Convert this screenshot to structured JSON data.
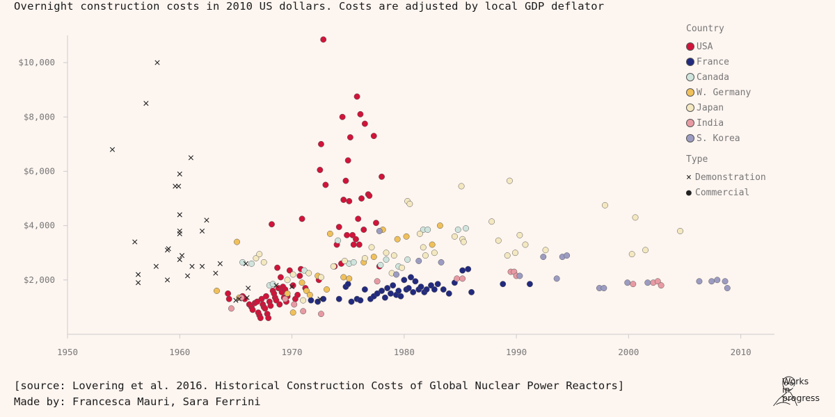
{
  "title": "Overnight construction costs in 2010 US dollars. Costs are adjusted by local GDP deflator",
  "footer": {
    "source": "[source: Lovering et al. 2016. Historical Construction Costs of Global Nuclear Power Reactors]",
    "credits": "Made by: Francesca Mauri, Sara Ferrini",
    "brand_lines": [
      "Works",
      "in",
      "progress"
    ]
  },
  "legend": {
    "country_title": "Country",
    "countries": [
      {
        "name": "USA",
        "color": "#d0143a"
      },
      {
        "name": "France",
        "color": "#222a7e"
      },
      {
        "name": "Canada",
        "color": "#cfe4dc"
      },
      {
        "name": "W. Germany",
        "color": "#f0c05a"
      },
      {
        "name": "Japan",
        "color": "#f4e8c0"
      },
      {
        "name": "India",
        "color": "#e89aa3"
      },
      {
        "name": "S. Korea",
        "color": "#9c9cc2"
      }
    ],
    "type_title": "Type",
    "types": [
      {
        "name": "Demonstration",
        "symbol": "×"
      },
      {
        "name": "Commercial",
        "symbol": "●"
      }
    ]
  },
  "chart_data": {
    "type": "scatter",
    "title": "Overnight construction costs in 2010 US dollars. Costs are adjusted by local GDP deflator",
    "xlabel": "",
    "ylabel": "",
    "xlim": [
      1950,
      2013
    ],
    "ylim": [
      0,
      11000
    ],
    "x_ticks": [
      1950,
      1960,
      1970,
      1980,
      1990,
      2000,
      2010
    ],
    "y_ticks": [
      2000,
      4000,
      6000,
      8000,
      10000
    ],
    "y_tick_labels": [
      "$2,000",
      "$4,000",
      "$6,000",
      "$8,000",
      "$10,000"
    ],
    "grid": false,
    "legend_position": "right",
    "series": [
      {
        "name": "Demonstration",
        "country": "USA",
        "marker": "x",
        "points": [
          [
            1954,
            6800
          ],
          [
            1956,
            3400
          ],
          [
            1956.3,
            2200
          ],
          [
            1956.3,
            1900
          ],
          [
            1957,
            8500
          ],
          [
            1957.9,
            2500
          ],
          [
            1958,
            10000
          ],
          [
            1958.9,
            3100
          ],
          [
            1959,
            3150
          ],
          [
            1958.9,
            2000
          ],
          [
            1959.6,
            5450
          ],
          [
            1959.9,
            5450
          ],
          [
            1960,
            5900
          ],
          [
            1960,
            4400
          ],
          [
            1960,
            3800
          ],
          [
            1960,
            3700
          ],
          [
            1960,
            2750
          ],
          [
            1960.2,
            2900
          ],
          [
            1960.7,
            2150
          ],
          [
            1961,
            6500
          ],
          [
            1961.1,
            2500
          ],
          [
            1962,
            2500
          ],
          [
            1962,
            3800
          ],
          [
            1962.4,
            4200
          ],
          [
            1963.2,
            2250
          ],
          [
            1963.6,
            2600
          ],
          [
            1965,
            1250
          ],
          [
            1965.3,
            1300
          ],
          [
            1965.9,
            2600
          ],
          [
            1966.1,
            1700
          ],
          [
            1966,
            1350
          ],
          [
            1968.6,
            1800
          ],
          [
            1970,
            1750
          ],
          [
            1972.5,
            1300
          ]
        ]
      },
      {
        "name": "USA",
        "marker": "o",
        "points": [
          [
            1964.3,
            1500
          ],
          [
            1964.4,
            1300
          ],
          [
            1965.6,
            1400
          ],
          [
            1965.8,
            1300
          ],
          [
            1966.2,
            1100
          ],
          [
            1966.4,
            1000
          ],
          [
            1966.5,
            900
          ],
          [
            1966.7,
            1150
          ],
          [
            1966.9,
            1200
          ],
          [
            1967,
            800
          ],
          [
            1967.1,
            700
          ],
          [
            1967.2,
            600
          ],
          [
            1967.3,
            1300
          ],
          [
            1967.4,
            1100
          ],
          [
            1967.5,
            1000
          ],
          [
            1967.6,
            950
          ],
          [
            1967.7,
            1400
          ],
          [
            1967.8,
            750
          ],
          [
            1967.9,
            600
          ],
          [
            1968,
            1200
          ],
          [
            1968.1,
            1050
          ],
          [
            1968.2,
            4050
          ],
          [
            1968.3,
            1600
          ],
          [
            1968.4,
            1500
          ],
          [
            1968.5,
            1350
          ],
          [
            1968.6,
            1250
          ],
          [
            1968.7,
            2450
          ],
          [
            1968.8,
            1700
          ],
          [
            1968.9,
            1100
          ],
          [
            1969,
            2100
          ],
          [
            1969.1,
            1550
          ],
          [
            1969.2,
            1750
          ],
          [
            1969.3,
            1350
          ],
          [
            1969.4,
            1650
          ],
          [
            1969.5,
            1200
          ],
          [
            1969.6,
            1400
          ],
          [
            1969.8,
            2350
          ],
          [
            1970.1,
            1800
          ],
          [
            1970.3,
            1300
          ],
          [
            1970.5,
            1450
          ],
          [
            1970.7,
            2150
          ],
          [
            1970.8,
            2400
          ],
          [
            1970.9,
            4250
          ],
          [
            1971.2,
            1700
          ],
          [
            1972.4,
            2000
          ],
          [
            1972.5,
            6050
          ],
          [
            1972.6,
            7000
          ],
          [
            1972.8,
            10850
          ],
          [
            1973,
            5500
          ],
          [
            1973.8,
            2500
          ],
          [
            1974,
            3300
          ],
          [
            1974.2,
            3950
          ],
          [
            1974.4,
            2600
          ],
          [
            1974.5,
            8000
          ],
          [
            1974.6,
            4950
          ],
          [
            1974.8,
            5650
          ],
          [
            1974.9,
            3650
          ],
          [
            1975,
            6400
          ],
          [
            1975.1,
            4900
          ],
          [
            1975.2,
            7250
          ],
          [
            1975.4,
            3650
          ],
          [
            1975.5,
            3300
          ],
          [
            1975.7,
            3500
          ],
          [
            1975.8,
            8750
          ],
          [
            1975.9,
            4250
          ],
          [
            1976,
            3300
          ],
          [
            1976.1,
            8100
          ],
          [
            1976.2,
            5000
          ],
          [
            1976.4,
            3850
          ],
          [
            1976.5,
            7750
          ],
          [
            1976.8,
            5150
          ],
          [
            1976.9,
            5100
          ],
          [
            1977.3,
            7300
          ],
          [
            1977.5,
            4100
          ],
          [
            1978,
            5800
          ],
          [
            1977.8,
            2500
          ]
        ]
      },
      {
        "name": "France",
        "marker": "o",
        "points": [
          [
            1971.7,
            1250
          ],
          [
            1972.3,
            1200
          ],
          [
            1972.8,
            1300
          ],
          [
            1974.2,
            1300
          ],
          [
            1974.8,
            1750
          ],
          [
            1975,
            1850
          ],
          [
            1975.3,
            1200
          ],
          [
            1975.8,
            1300
          ],
          [
            1976.1,
            1250
          ],
          [
            1976.5,
            1650
          ],
          [
            1977,
            1300
          ],
          [
            1977.3,
            1400
          ],
          [
            1977.6,
            1500
          ],
          [
            1978,
            1600
          ],
          [
            1978.3,
            1350
          ],
          [
            1978.5,
            1700
          ],
          [
            1978.8,
            1500
          ],
          [
            1979,
            1800
          ],
          [
            1979.3,
            1450
          ],
          [
            1979.5,
            1600
          ],
          [
            1979.7,
            1400
          ],
          [
            1980,
            2000
          ],
          [
            1980.2,
            1650
          ],
          [
            1980.4,
            1700
          ],
          [
            1980.6,
            2100
          ],
          [
            1980.8,
            1550
          ],
          [
            1981,
            1950
          ],
          [
            1981.3,
            1650
          ],
          [
            1981.5,
            1750
          ],
          [
            1981.8,
            1550
          ],
          [
            1982,
            1650
          ],
          [
            1982.4,
            1800
          ],
          [
            1982.7,
            1650
          ],
          [
            1983,
            1850
          ],
          [
            1983.5,
            1650
          ],
          [
            1984,
            1500
          ],
          [
            1984.5,
            1900
          ],
          [
            1985.2,
            2350
          ],
          [
            1985.7,
            2400
          ],
          [
            1986,
            1550
          ],
          [
            1988.8,
            1850
          ],
          [
            1991.2,
            1850
          ]
        ]
      },
      {
        "name": "Canada",
        "marker": "o",
        "points": [
          [
            1965.6,
            2650
          ],
          [
            1966.4,
            2600
          ],
          [
            1968,
            1800
          ],
          [
            1968.3,
            1850
          ],
          [
            1971.1,
            2350
          ],
          [
            1974.1,
            3450
          ],
          [
            1975.1,
            2600
          ],
          [
            1975.5,
            2650
          ],
          [
            1977.9,
            2550
          ],
          [
            1978.4,
            2750
          ],
          [
            1979.5,
            2500
          ],
          [
            1980.3,
            2750
          ],
          [
            1981.7,
            3850
          ],
          [
            1982.1,
            3850
          ],
          [
            1984.8,
            3850
          ],
          [
            1985.5,
            3900
          ]
        ]
      },
      {
        "name": "W. Germany",
        "marker": "o",
        "points": [
          [
            1963.3,
            1600
          ],
          [
            1965.1,
            3400
          ],
          [
            1965.3,
            1350
          ],
          [
            1969.6,
            1500
          ],
          [
            1970.1,
            800
          ],
          [
            1970.9,
            1900
          ],
          [
            1971.3,
            1600
          ],
          [
            1971.6,
            1450
          ],
          [
            1972.3,
            2150
          ],
          [
            1973.1,
            1650
          ],
          [
            1973.4,
            3700
          ],
          [
            1974.6,
            2100
          ],
          [
            1975.1,
            2050
          ],
          [
            1976.4,
            2650
          ],
          [
            1977.3,
            2850
          ],
          [
            1978.1,
            3850
          ],
          [
            1979.4,
            3500
          ],
          [
            1980.2,
            3600
          ],
          [
            1982.5,
            3300
          ],
          [
            1983.2,
            4000
          ]
        ]
      },
      {
        "name": "Japan",
        "marker": "o",
        "points": [
          [
            1966.8,
            2800
          ],
          [
            1967.1,
            2950
          ],
          [
            1967.5,
            2650
          ],
          [
            1969.6,
            2000
          ],
          [
            1970.1,
            2200
          ],
          [
            1971,
            1250
          ],
          [
            1971.5,
            2250
          ],
          [
            1972.6,
            2100
          ],
          [
            1973.7,
            2500
          ],
          [
            1974.7,
            2700
          ],
          [
            1976.5,
            2800
          ],
          [
            1977.1,
            3200
          ],
          [
            1978.4,
            3000
          ],
          [
            1978.9,
            2250
          ],
          [
            1979.1,
            2900
          ],
          [
            1979.8,
            2450
          ],
          [
            1980.3,
            4900
          ],
          [
            1980.5,
            4800
          ],
          [
            1981.4,
            3700
          ],
          [
            1981.7,
            3200
          ],
          [
            1981.9,
            2900
          ],
          [
            1982.7,
            3000
          ],
          [
            1984.5,
            3600
          ],
          [
            1985.1,
            5450
          ],
          [
            1985.2,
            3500
          ],
          [
            1985.3,
            3400
          ],
          [
            1987.8,
            4150
          ],
          [
            1988.4,
            3450
          ],
          [
            1989.2,
            2900
          ],
          [
            1989.4,
            5650
          ],
          [
            1989.9,
            3000
          ],
          [
            1990.3,
            3650
          ],
          [
            1990.8,
            3300
          ],
          [
            1992.6,
            3100
          ],
          [
            1997.9,
            4750
          ],
          [
            2000.6,
            4300
          ],
          [
            2000.3,
            2950
          ],
          [
            2001.5,
            3100
          ],
          [
            2004.6,
            3800
          ]
        ]
      },
      {
        "name": "India",
        "marker": "o",
        "points": [
          [
            1964.6,
            950
          ],
          [
            1965.5,
            1350
          ],
          [
            1969.4,
            1300
          ],
          [
            1970.2,
            1100
          ],
          [
            1971,
            850
          ],
          [
            1972.6,
            750
          ],
          [
            1977.6,
            1950
          ],
          [
            1984.7,
            2050
          ],
          [
            1985.2,
            2050
          ],
          [
            1989.5,
            2300
          ],
          [
            1989.8,
            2300
          ],
          [
            1990,
            2150
          ],
          [
            2000.4,
            1850
          ],
          [
            2002.2,
            1900
          ],
          [
            2002.6,
            1950
          ],
          [
            2002.9,
            1800
          ]
        ]
      },
      {
        "name": "S. Korea",
        "marker": "o",
        "points": [
          [
            1977.8,
            3800
          ],
          [
            1979.3,
            2200
          ],
          [
            1981.3,
            2700
          ],
          [
            1983.3,
            2650
          ],
          [
            1990.3,
            2150
          ],
          [
            1992.4,
            2850
          ],
          [
            1993.6,
            2050
          ],
          [
            1994.1,
            2850
          ],
          [
            1994.5,
            2900
          ],
          [
            1997.4,
            1700
          ],
          [
            1997.8,
            1700
          ],
          [
            1999.9,
            1900
          ],
          [
            2001.7,
            1900
          ],
          [
            2006.3,
            1950
          ],
          [
            2007.4,
            1950
          ],
          [
            2007.9,
            2000
          ],
          [
            2008.6,
            1950
          ],
          [
            2008.8,
            1700
          ]
        ]
      }
    ]
  }
}
